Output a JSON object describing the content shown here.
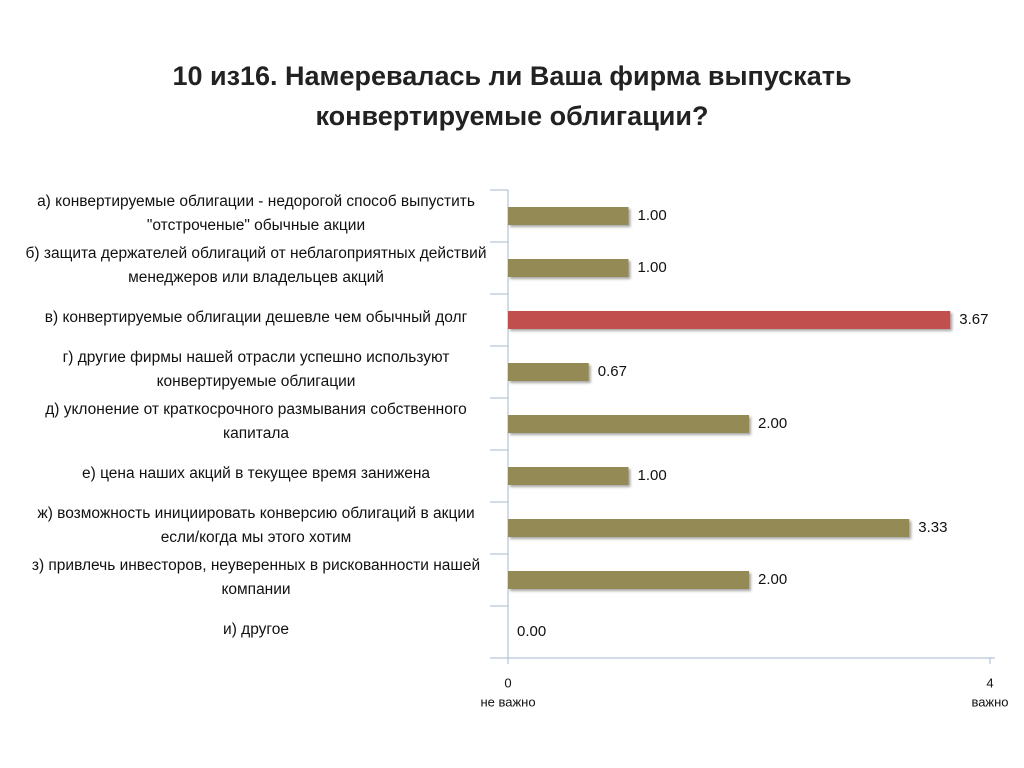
{
  "chart_data": {
    "type": "barh",
    "title": "10 из16. Намеревалась ли Ваша фирма выпускать конвертируемые облигации?",
    "categories": [
      "а) конвертируемые облигации - недорогой способ выпустить \"отстроченые\" обычные акции",
      "б) защита держателей облигаций от неблагоприятных действий менеджеров или владельцев акций",
      "в) конвертируемые облигации дешевле чем обычный долг",
      "г) другие фирмы нашей отрасли успешно используют конвертируемые облигации",
      "д) уклонение от краткосрочного размывания собственного капитала",
      "е) цена наших акций в текущее время занижена",
      "ж) возможность инициировать конверсию облигаций в акции если/когда мы этого хотим",
      "з) привлечь инвесторов, неуверенных в рискованности нашей компании",
      "и) другое"
    ],
    "values": [
      1,
      1,
      3.67,
      0.67,
      2,
      1,
      3.33,
      2,
      0
    ],
    "value_labels": [
      "1.00",
      "1.00",
      "3.67",
      "0.67",
      "2.00",
      "1.00",
      "3.33",
      "2.00",
      "0.00"
    ],
    "colors": [
      "#948a54",
      "#948a54",
      "#c0504d",
      "#948a54",
      "#948a54",
      "#948a54",
      "#948a54",
      "#948a54",
      "#948a54"
    ],
    "xlim": [
      0,
      4
    ],
    "xticks": [
      0,
      4
    ],
    "annotations": [
      "не важно",
      "важно"
    ]
  }
}
